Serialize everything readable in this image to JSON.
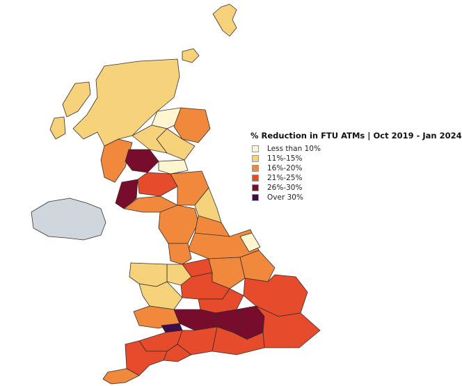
{
  "legend": {
    "title": "% Reduction in FTU ATMs | Oct 2019 - Jan 2024",
    "items": [
      {
        "label": "Less than 10%",
        "color": "#fff6cf"
      },
      {
        "label": "11%-15%",
        "color": "#f6d27a"
      },
      {
        "label": "16%-20%",
        "color": "#f1893c"
      },
      {
        "label": "21%-25%",
        "color": "#e64b2b"
      },
      {
        "label": "26%-30%",
        "color": "#780c2c"
      },
      {
        "label": "Over 30%",
        "color": "#3e0b4c"
      }
    ]
  },
  "no_data_color": "#cfd6dc"
}
